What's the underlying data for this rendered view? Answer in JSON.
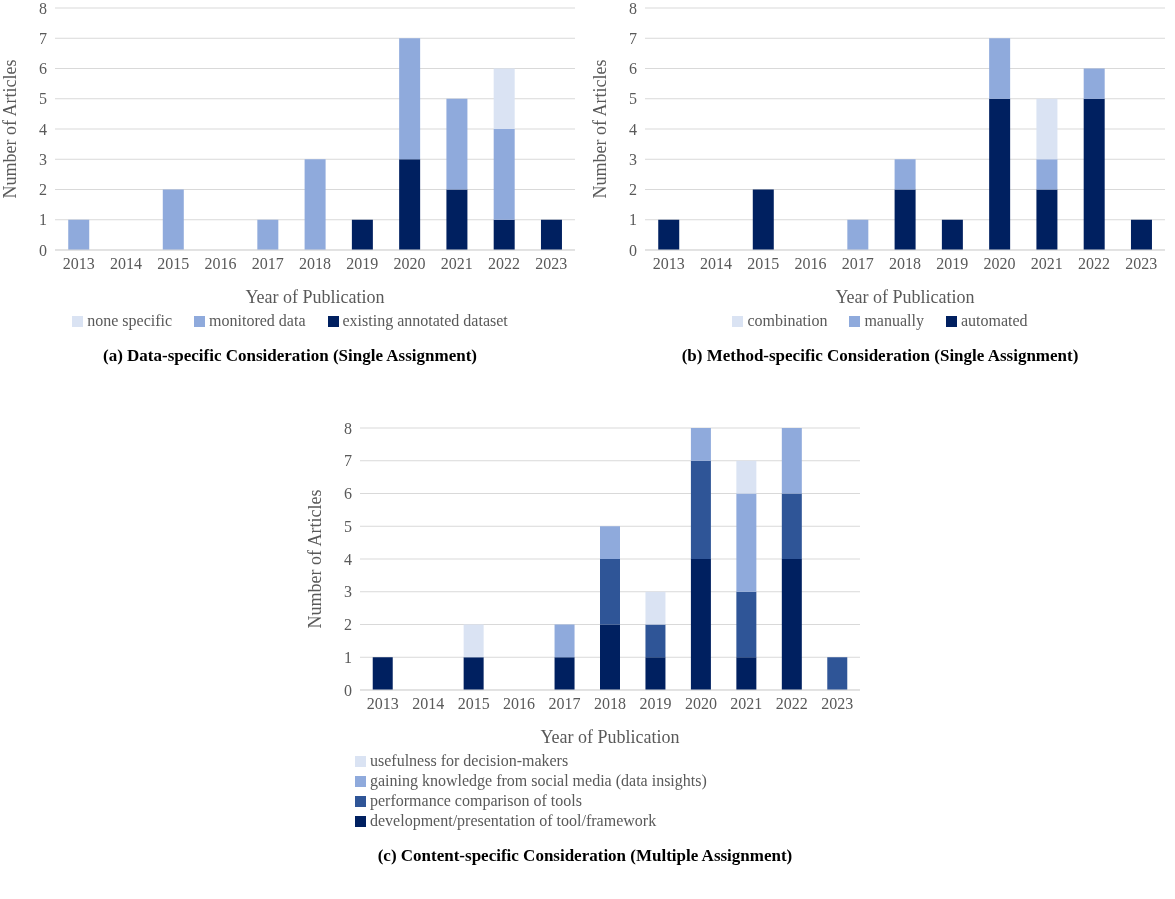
{
  "chart_data": [
    {
      "type": "bar",
      "title": "(a) Data-specific Consideration (Single Assignment)",
      "xlabel": "Year of Publication",
      "ylabel": "Number of Articles",
      "categories": [
        "2013",
        "2014",
        "2015",
        "2016",
        "2017",
        "2018",
        "2019",
        "2020",
        "2021",
        "2022",
        "2023"
      ],
      "stacked": true,
      "ylim": [
        0,
        8
      ],
      "yticks": [
        0,
        1,
        2,
        3,
        4,
        5,
        6,
        7,
        8
      ],
      "grid": "y",
      "legend": "bottom",
      "series": [
        {
          "name": "existing annotated dataset",
          "color": "#002060",
          "values": [
            0,
            0,
            0,
            0,
            0,
            0,
            1,
            3,
            2,
            1,
            1
          ]
        },
        {
          "name": "monitored data",
          "color": "#8faadc",
          "values": [
            1,
            0,
            2,
            0,
            1,
            3,
            0,
            4,
            3,
            3,
            0
          ]
        },
        {
          "name": "none specific",
          "color": "#dae3f3",
          "values": [
            0,
            0,
            0,
            0,
            0,
            0,
            0,
            0,
            0,
            2,
            0
          ]
        }
      ]
    },
    {
      "type": "bar",
      "title": "(b) Method-specific Consideration (Single Assignment)",
      "xlabel": "Year of Publication",
      "ylabel": "Number of Articles",
      "categories": [
        "2013",
        "2014",
        "2015",
        "2016",
        "2017",
        "2018",
        "2019",
        "2020",
        "2021",
        "2022",
        "2023"
      ],
      "stacked": true,
      "ylim": [
        0,
        8
      ],
      "yticks": [
        0,
        1,
        2,
        3,
        4,
        5,
        6,
        7,
        8
      ],
      "grid": "y",
      "legend": "bottom",
      "series": [
        {
          "name": "automated",
          "color": "#002060",
          "values": [
            1,
            0,
            2,
            0,
            0,
            2,
            1,
            5,
            2,
            5,
            1
          ]
        },
        {
          "name": "manually",
          "color": "#8faadc",
          "values": [
            0,
            0,
            0,
            0,
            1,
            1,
            0,
            2,
            1,
            1,
            0
          ]
        },
        {
          "name": "combination",
          "color": "#dae3f3",
          "values": [
            0,
            0,
            0,
            0,
            0,
            0,
            0,
            0,
            2,
            0,
            0
          ]
        }
      ]
    },
    {
      "type": "bar",
      "title": "(c) Content-specific Consideration (Multiple Assignment)",
      "xlabel": "Year of Publication",
      "ylabel": "Number of Articles",
      "categories": [
        "2013",
        "2014",
        "2015",
        "2016",
        "2017",
        "2018",
        "2019",
        "2020",
        "2021",
        "2022",
        "2023"
      ],
      "stacked": true,
      "ylim": [
        0,
        8
      ],
      "yticks": [
        0,
        1,
        2,
        3,
        4,
        5,
        6,
        7,
        8
      ],
      "grid": "y",
      "legend": "bottom left",
      "series": [
        {
          "name": "development/presentation of tool/framework",
          "color": "#002060",
          "values": [
            1,
            0,
            1,
            0,
            1,
            2,
            1,
            4,
            1,
            4,
            0
          ]
        },
        {
          "name": "performance comparison of tools",
          "color": "#2f5597",
          "values": [
            0,
            0,
            0,
            0,
            0,
            2,
            1,
            3,
            2,
            2,
            1
          ]
        },
        {
          "name": "gaining knowledge from social media (data insights)",
          "color": "#8faadc",
          "values": [
            0,
            0,
            0,
            0,
            1,
            1,
            0,
            1,
            3,
            2,
            0
          ]
        },
        {
          "name": "usefulness for decision-makers",
          "color": "#dae3f3",
          "values": [
            0,
            0,
            1,
            0,
            0,
            0,
            1,
            0,
            1,
            0,
            0
          ]
        }
      ]
    }
  ]
}
